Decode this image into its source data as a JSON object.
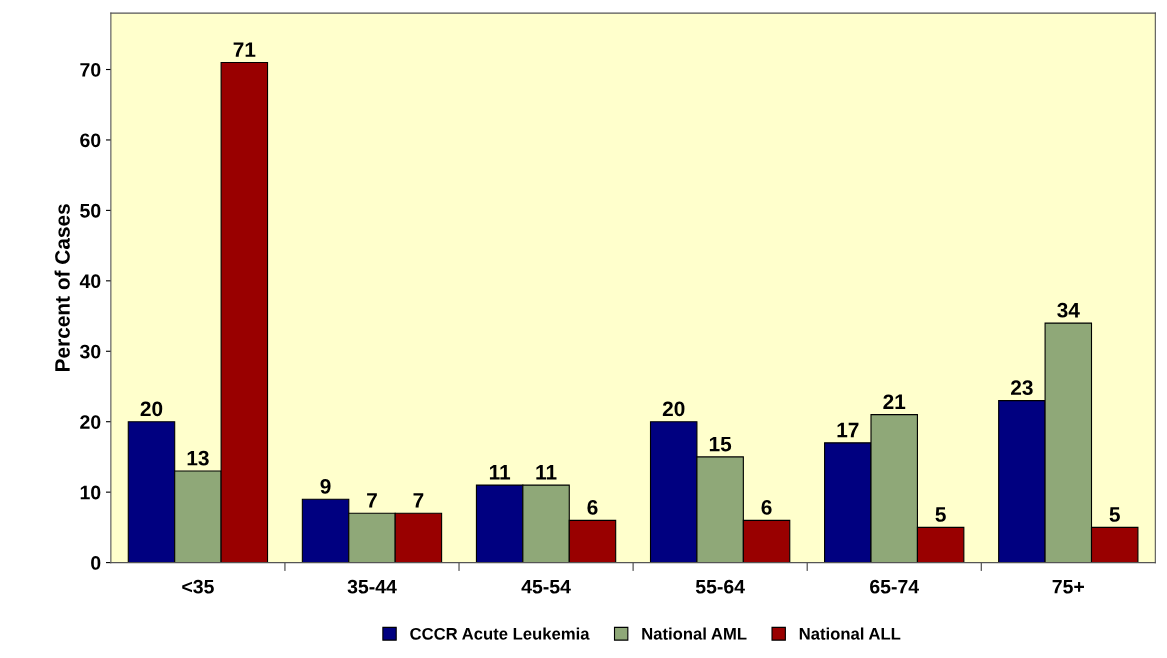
{
  "chart_data": {
    "type": "bar",
    "ylabel": "Percent of Cases",
    "categories": [
      "<35",
      "35-44",
      "45-54",
      "55-64",
      "65-74",
      "75+"
    ],
    "series": [
      {
        "name": "CCCR Acute Leukemia",
        "color": "#000080",
        "values": [
          20,
          9,
          11,
          20,
          17,
          23
        ]
      },
      {
        "name": "National AML",
        "color": "#8fa878",
        "values": [
          13,
          7,
          11,
          15,
          21,
          34
        ]
      },
      {
        "name": "National ALL",
        "color": "#990000",
        "values": [
          71,
          7,
          6,
          6,
          5,
          5
        ]
      }
    ],
    "ylim": [
      0,
      78
    ],
    "yticks": [
      0,
      10,
      20,
      30,
      40,
      50,
      60,
      70
    ],
    "grid": false,
    "legend": "bottom",
    "data_labels": true
  }
}
